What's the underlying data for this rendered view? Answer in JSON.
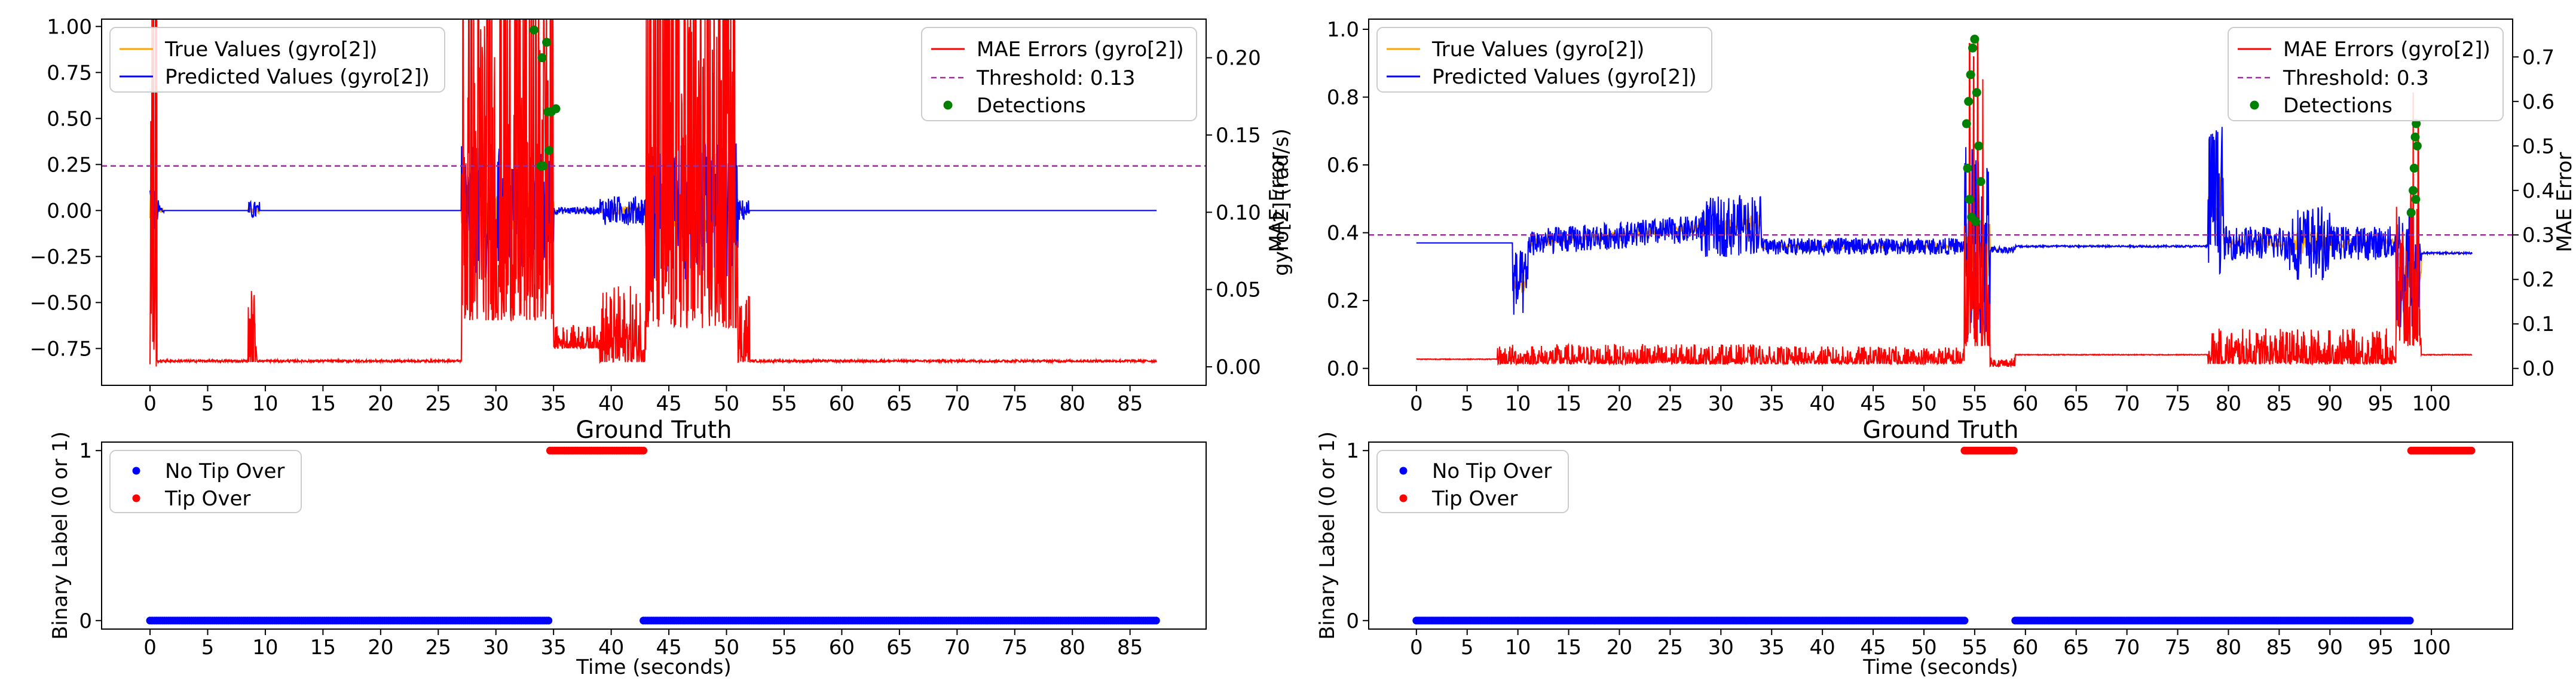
{
  "chart_data": [
    {
      "type": "line",
      "panel": "left-top",
      "title": "Ground Truth",
      "xlabel": "",
      "ylabel": "gyro[2] (rad/s)",
      "y2label": "MAE Error",
      "xlim": [
        -4.2,
        91.6
      ],
      "ylim": [
        -0.95,
        1.04
      ],
      "y2lim": [
        -0.012,
        0.225
      ],
      "xticks": [
        0,
        5,
        10,
        15,
        20,
        25,
        30,
        35,
        40,
        45,
        50,
        55,
        60,
        65,
        70,
        75,
        80,
        85
      ],
      "yticks": [
        -0.75,
        -0.5,
        -0.25,
        0.0,
        0.25,
        0.5,
        0.75,
        1.0
      ],
      "ytick_labels": [
        "−0.75",
        "−0.50",
        "−0.25",
        "0.00",
        "0.25",
        "0.50",
        "0.75",
        "1.00"
      ],
      "y2ticks": [
        0.0,
        0.05,
        0.1,
        0.15,
        0.2
      ],
      "y2tick_labels": [
        "0.00",
        "0.05",
        "0.10",
        "0.15",
        "0.20"
      ],
      "threshold": 0.13,
      "duration": 87.3,
      "legend_left": [
        "True Values (gyro[2])",
        "Predicted Values (gyro[2])"
      ],
      "legend_right": [
        "MAE Errors (gyro[2])",
        "Threshold: 0.13",
        "Detections"
      ],
      "series": [
        {
          "name": "True Values (gyro[2])",
          "color": "#ffa500"
        },
        {
          "name": "Predicted Values (gyro[2])",
          "color": "#0000ff"
        },
        {
          "name": "MAE Errors (gyro[2])",
          "color": "#ff0000"
        }
      ],
      "segments": [
        [
          0,
          0.6,
          0.35,
          0.0
        ],
        [
          8.5,
          9.3,
          0.05,
          0.003
        ],
        [
          27,
          35,
          0.28,
          0.03
        ],
        [
          35,
          39,
          0.015,
          0.012
        ],
        [
          39,
          43,
          0.05,
          0.003
        ],
        [
          43,
          51,
          0.32,
          0.025
        ],
        [
          51,
          52,
          0.05,
          0.003
        ]
      ],
      "spikes": [
        [
          33.5,
          0.218
        ],
        [
          33.8,
          0.205
        ],
        [
          34.2,
          0.21
        ],
        [
          34.5,
          0.185
        ],
        [
          33.2,
          0.13
        ],
        [
          34.0,
          0.16
        ]
      ],
      "detections": [
        [
          33.3,
          0.218
        ],
        [
          34.4,
          0.21
        ],
        [
          34.0,
          0.2
        ],
        [
          34.5,
          0.165
        ],
        [
          34.8,
          0.165
        ],
        [
          35.2,
          0.167
        ],
        [
          34.6,
          0.14
        ],
        [
          33.9,
          0.13
        ],
        [
          34.1,
          0.13
        ]
      ]
    },
    {
      "type": "line",
      "panel": "right-top",
      "title": "Ground Truth",
      "xlabel": "",
      "ylabel": "gyro[2] (rad/s)",
      "y2label": "MAE Error",
      "xlim": [
        -4.7,
        108
      ],
      "ylim": [
        -0.05,
        1.03
      ],
      "y2lim": [
        -0.038,
        0.785
      ],
      "xticks": [
        0,
        5,
        10,
        15,
        20,
        25,
        30,
        35,
        40,
        45,
        50,
        55,
        60,
        65,
        70,
        75,
        80,
        85,
        90,
        95,
        100
      ],
      "yticks": [
        0.0,
        0.2,
        0.4,
        0.6,
        0.8,
        1.0
      ],
      "ytick_labels": [
        "0.0",
        "0.2",
        "0.4",
        "0.6",
        "0.8",
        "1.0"
      ],
      "y2ticks": [
        0.0,
        0.1,
        0.2,
        0.3,
        0.4,
        0.5,
        0.6,
        0.7
      ],
      "y2tick_labels": [
        "0.0",
        "0.1",
        "0.2",
        "0.3",
        "0.4",
        "0.5",
        "0.6",
        "0.7"
      ],
      "threshold": 0.3,
      "duration": 104,
      "legend_left": [
        "True Values (gyro[2])",
        "Predicted Values (gyro[2])"
      ],
      "legend_right": [
        "MAE Errors (gyro[2])",
        "Threshold: 0.3",
        "Detections"
      ],
      "series": [
        {
          "name": "True Values (gyro[2])",
          "color": "#ffa500"
        },
        {
          "name": "Predicted Values (gyro[2])",
          "color": "#0000ff"
        },
        {
          "name": "MAE Errors (gyro[2])",
          "color": "#ff0000"
        }
      ],
      "segments": [
        [
          8,
          34,
          0.045,
          0.01
        ],
        [
          34,
          54,
          0.04,
          0.01
        ],
        [
          54,
          56.5,
          0.3,
          0.05
        ],
        [
          56.5,
          59,
          0.02,
          0.005
        ],
        [
          78,
          96.5,
          0.08,
          0.01
        ],
        [
          96.5,
          99,
          0.35,
          0.05
        ]
      ],
      "spikes": [
        [
          54.5,
          0.73
        ],
        [
          54.9,
          0.7
        ],
        [
          55.3,
          0.74
        ],
        [
          55.8,
          0.65
        ],
        [
          98.2,
          0.62
        ],
        [
          98.7,
          0.55
        ]
      ],
      "detections": [
        [
          54.2,
          0.55
        ],
        [
          54.4,
          0.6
        ],
        [
          54.6,
          0.66
        ],
        [
          54.8,
          0.72
        ],
        [
          55.0,
          0.74
        ],
        [
          55.2,
          0.62
        ],
        [
          55.4,
          0.5
        ],
        [
          55.6,
          0.42
        ],
        [
          54.3,
          0.45
        ],
        [
          54.5,
          0.38
        ],
        [
          54.7,
          0.34
        ],
        [
          55.1,
          0.33
        ],
        [
          98.0,
          0.35
        ],
        [
          98.2,
          0.4
        ],
        [
          98.3,
          0.45
        ],
        [
          98.4,
          0.52
        ],
        [
          98.5,
          0.55
        ],
        [
          98.6,
          0.5
        ],
        [
          98.45,
          0.38
        ]
      ]
    },
    {
      "type": "scatter",
      "panel": "left-bottom",
      "title": "",
      "xlabel": "Time (seconds)",
      "ylabel": "Binary Label (0 or 1)",
      "xlim": [
        -4.2,
        91.6
      ],
      "ylim": [
        -0.05,
        1.05
      ],
      "xticks": [
        0,
        5,
        10,
        15,
        20,
        25,
        30,
        35,
        40,
        45,
        50,
        55,
        60,
        65,
        70,
        75,
        80,
        85
      ],
      "yticks": [
        0,
        1
      ],
      "legend": [
        "No Tip Over",
        "Tip Over"
      ],
      "no_tip_over_ranges": [
        [
          0,
          34.7
        ],
        [
          42.8,
          87.3
        ]
      ],
      "tip_over_ranges": [
        [
          34.7,
          42.8
        ]
      ]
    },
    {
      "type": "scatter",
      "panel": "right-bottom",
      "title": "",
      "xlabel": "Time (seconds)",
      "ylabel": "Binary Label (0 or 1)",
      "xlim": [
        -4.7,
        108
      ],
      "ylim": [
        -0.05,
        1.05
      ],
      "xticks": [
        0,
        5,
        10,
        15,
        20,
        25,
        30,
        35,
        40,
        45,
        50,
        55,
        60,
        65,
        70,
        75,
        80,
        85,
        90,
        95,
        100
      ],
      "yticks": [
        0,
        1
      ],
      "legend": [
        "No Tip Over",
        "Tip Over"
      ],
      "no_tip_over_ranges": [
        [
          0,
          54
        ],
        [
          59,
          98
        ]
      ],
      "tip_over_ranges": [
        [
          54,
          59
        ],
        [
          98,
          104
        ]
      ]
    }
  ],
  "colors": {
    "true": "#ffa500",
    "pred": "#0000ff",
    "mae": "#ff0000",
    "threshold": "#9b2d9b",
    "detect": "#008000",
    "no_tip": "#0000ff",
    "tip": "#ff0000"
  }
}
